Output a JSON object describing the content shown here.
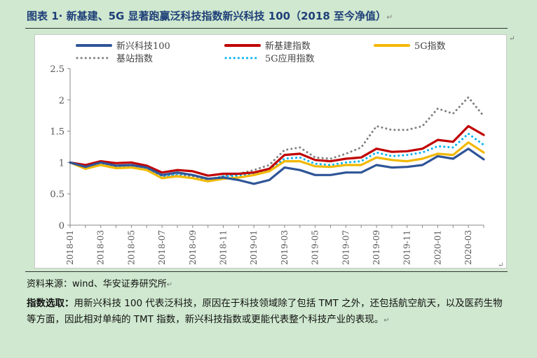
{
  "figure": {
    "title": "图表 1· 新基建、5G 显著跑赢泛科技指数新兴科技 100（2018 至今净值）",
    "edge_mark": "↵"
  },
  "source_text": "资料来源：wind、华安证券研究所",
  "note": {
    "label": "指数选取：",
    "text": "用新兴科技 100 代表泛科技，原因在于科技领域除了包括 TMT 之外，还包括航空航天，以及医药生物等方面，因此相对单纯的 TMT 指数，新兴科技指数或更能代表整个科技产业的表现。"
  },
  "chart_data": {
    "type": "line",
    "x": [
      "2018-01",
      "2018-02",
      "2018-03",
      "2018-04",
      "2018-05",
      "2018-06",
      "2018-07",
      "2018-08",
      "2018-09",
      "2018-10",
      "2018-11",
      "2018-12",
      "2019-01",
      "2019-02",
      "2019-03",
      "2019-04",
      "2019-05",
      "2019-06",
      "2019-07",
      "2019-08",
      "2019-09",
      "2019-10",
      "2019-11",
      "2019-12",
      "2020-01",
      "2020-02",
      "2020-03",
      "2020-04"
    ],
    "x_tick_labels": [
      "2018-01",
      "2018-03",
      "2018-05",
      "2018-07",
      "2018-09",
      "2018-11",
      "2019-01",
      "2019-03",
      "2019-05",
      "2019-07",
      "2019-09",
      "2019-11",
      "2020-01",
      "2020-03"
    ],
    "ylim": [
      0,
      2.5
    ],
    "yticks": [
      "0",
      "0.5",
      "1",
      "1.5",
      "2",
      "2.5"
    ],
    "grid": false,
    "legend_position": "top",
    "series": [
      {
        "name": "新兴科技100",
        "color": "#2f5597",
        "style": "solid",
        "values": [
          1.0,
          0.93,
          1.0,
          0.95,
          0.96,
          0.92,
          0.8,
          0.84,
          0.8,
          0.74,
          0.76,
          0.72,
          0.66,
          0.72,
          0.92,
          0.88,
          0.8,
          0.8,
          0.84,
          0.84,
          0.96,
          0.92,
          0.93,
          0.96,
          1.1,
          1.06,
          1.22,
          1.05
        ]
      },
      {
        "name": "新基建指数",
        "color": "#c00000",
        "style": "solid",
        "values": [
          1.0,
          0.96,
          1.02,
          0.99,
          1.0,
          0.95,
          0.84,
          0.88,
          0.86,
          0.79,
          0.82,
          0.82,
          0.84,
          0.9,
          1.12,
          1.14,
          1.04,
          1.02,
          1.06,
          1.08,
          1.22,
          1.17,
          1.18,
          1.22,
          1.36,
          1.33,
          1.58,
          1.44
        ]
      },
      {
        "name": "5G指数",
        "color": "#f2b800",
        "style": "solid",
        "values": [
          1.0,
          0.9,
          0.96,
          0.91,
          0.92,
          0.88,
          0.75,
          0.78,
          0.75,
          0.7,
          0.74,
          0.76,
          0.8,
          0.86,
          1.02,
          1.02,
          0.94,
          0.93,
          0.96,
          0.96,
          1.08,
          1.04,
          1.02,
          1.06,
          1.14,
          1.12,
          1.32,
          1.16
        ]
      },
      {
        "name": "基站指数",
        "color": "#808080",
        "style": "dotted",
        "values": [
          1.0,
          0.92,
          1.0,
          0.94,
          0.96,
          0.9,
          0.76,
          0.8,
          0.78,
          0.72,
          0.78,
          0.82,
          0.88,
          0.96,
          1.2,
          1.24,
          1.08,
          1.06,
          1.14,
          1.24,
          1.58,
          1.52,
          1.52,
          1.58,
          1.86,
          1.78,
          2.04,
          1.74
        ]
      },
      {
        "name": "5G应用指数",
        "color": "#00b0f0",
        "style": "dotted",
        "values": [
          1.0,
          0.92,
          0.98,
          0.93,
          0.94,
          0.9,
          0.78,
          0.82,
          0.8,
          0.73,
          0.78,
          0.79,
          0.82,
          0.88,
          1.06,
          1.08,
          0.98,
          0.96,
          1.0,
          1.02,
          1.16,
          1.1,
          1.12,
          1.16,
          1.26,
          1.24,
          1.46,
          1.28
        ]
      }
    ]
  }
}
